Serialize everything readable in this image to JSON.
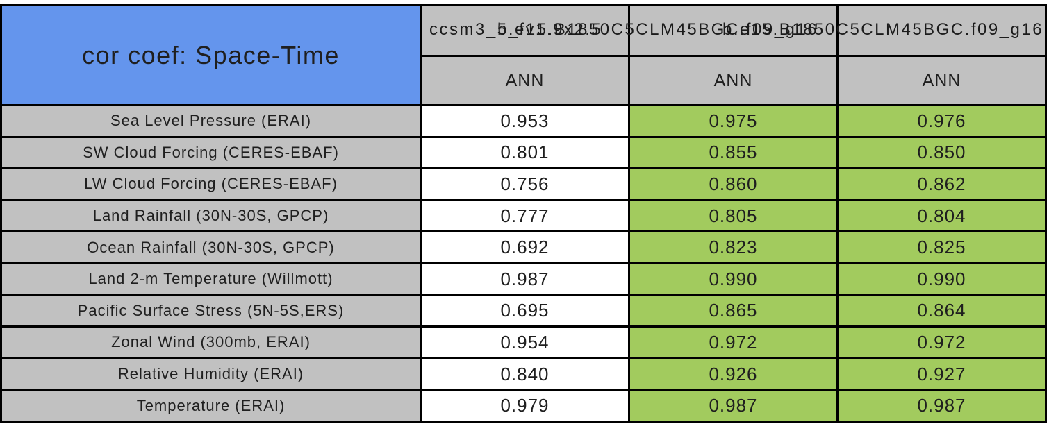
{
  "title": "cor coef: Space-Time",
  "header": {
    "model_names": [
      "ccsm3_5_fv1.9x2.5",
      "b.e15.B1850C5CLM45BGC.f09_g16",
      "b.e15.B1850C5CLM45BGC.f09_g16"
    ],
    "season_labels": [
      "ANN",
      "ANN",
      "ANN"
    ]
  },
  "value_column_styles": [
    "default",
    "highlight",
    "highlight"
  ],
  "rows": [
    {
      "label": "Sea Level Pressure (ERAI)",
      "values": [
        "0.953",
        "0.975",
        "0.976"
      ]
    },
    {
      "label": "SW Cloud Forcing (CERES-EBAF)",
      "values": [
        "0.801",
        "0.855",
        "0.850"
      ]
    },
    {
      "label": "LW Cloud Forcing (CERES-EBAF)",
      "values": [
        "0.756",
        "0.860",
        "0.862"
      ]
    },
    {
      "label": "Land Rainfall (30N-30S, GPCP)",
      "values": [
        "0.777",
        "0.805",
        "0.804"
      ]
    },
    {
      "label": "Ocean Rainfall (30N-30S, GPCP)",
      "values": [
        "0.692",
        "0.823",
        "0.825"
      ]
    },
    {
      "label": "Land 2-m Temperature (Willmott)",
      "values": [
        "0.987",
        "0.990",
        "0.990"
      ]
    },
    {
      "label": "Pacific Surface Stress (5N-5S,ERS)",
      "values": [
        "0.695",
        "0.865",
        "0.864"
      ]
    },
    {
      "label": "Zonal Wind (300mb, ERAI)",
      "values": [
        "0.954",
        "0.972",
        "0.972"
      ]
    },
    {
      "label": "Relative Humidity (ERAI)",
      "values": [
        "0.840",
        "0.926",
        "0.927"
      ]
    },
    {
      "label": "Temperature (ERAI)",
      "values": [
        "0.979",
        "0.987",
        "0.987"
      ]
    }
  ],
  "colors": {
    "page_bg": "#ffffff",
    "border": "#000000",
    "text": "#1f1f1f",
    "title_bg": "#6495ed",
    "header_bg": "#c1c1c1",
    "label_bg": "#c1c1c1",
    "value_default_bg": "#ffffff",
    "value_highlight_bg": "#a2cb5e"
  },
  "chart_data": {
    "type": "table",
    "title": "cor coef: Space-Time",
    "categories": [
      "Sea Level Pressure (ERAI)",
      "SW Cloud Forcing (CERES-EBAF)",
      "LW Cloud Forcing (CERES-EBAF)",
      "Land Rainfall (30N-30S, GPCP)",
      "Ocean Rainfall (30N-30S, GPCP)",
      "Land 2-m Temperature (Willmott)",
      "Pacific Surface Stress (5N-5S,ERS)",
      "Zonal Wind (300mb, ERAI)",
      "Relative Humidity (ERAI)",
      "Temperature (ERAI)"
    ],
    "series": [
      {
        "name": "ccsm3_5_fv1.9x2.5 (ANN)",
        "values": [
          0.953,
          0.801,
          0.756,
          0.777,
          0.692,
          0.987,
          0.695,
          0.954,
          0.84,
          0.979
        ]
      },
      {
        "name": "b.e15.B1850C5CLM45BGC.f09_g16 (ANN)",
        "values": [
          0.975,
          0.855,
          0.86,
          0.805,
          0.823,
          0.99,
          0.865,
          0.972,
          0.926,
          0.987
        ]
      },
      {
        "name": "b.e15.B1850C5CLM45BGC.f09_g16 (ANN)",
        "values": [
          0.976,
          0.85,
          0.862,
          0.804,
          0.825,
          0.99,
          0.864,
          0.972,
          0.927,
          0.987
        ]
      }
    ]
  }
}
